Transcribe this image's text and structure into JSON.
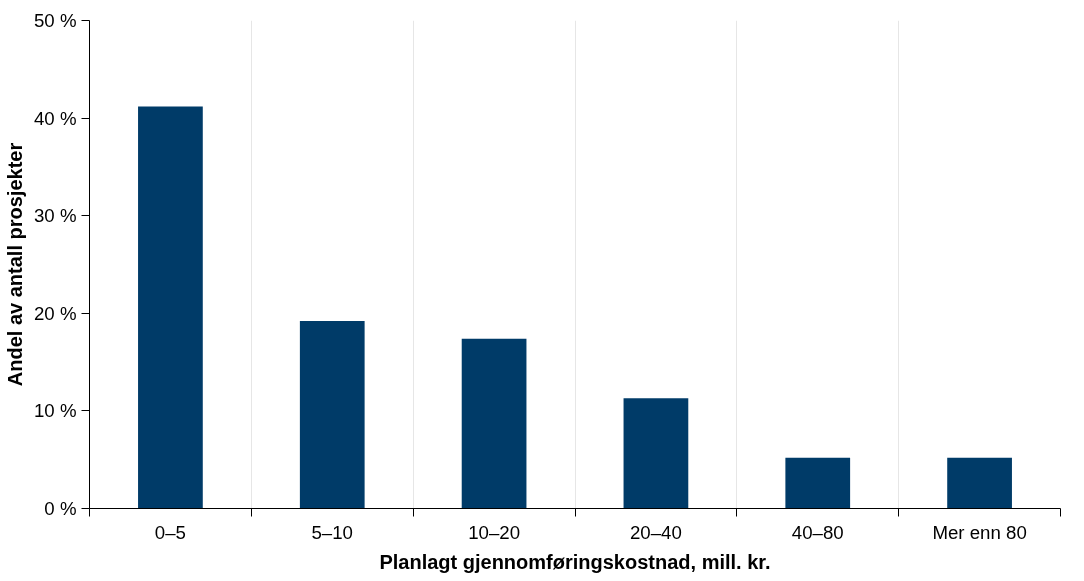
{
  "chart_data": {
    "type": "bar",
    "xlabel": "Planlagt gjennomføringskostnad, mill. kr.",
    "ylabel": "Andel av antall prosjekter",
    "categories": [
      "0–5",
      "5–10",
      "10–20",
      "20–40",
      "40–80",
      "Mer enn 80"
    ],
    "values": [
      41.2,
      19.2,
      17.4,
      11.3,
      5.2,
      5.2
    ],
    "color": "#003b68",
    "ylim": [
      0,
      50
    ],
    "yticks": [
      {
        "value": 0,
        "label": "0 %"
      },
      {
        "value": 10,
        "label": "10 %"
      },
      {
        "value": 20,
        "label": "20 %"
      },
      {
        "value": 30,
        "label": "30 %"
      },
      {
        "value": 40,
        "label": "40 %"
      },
      {
        "value": 50,
        "label": "50 %"
      }
    ],
    "grid": "x"
  }
}
